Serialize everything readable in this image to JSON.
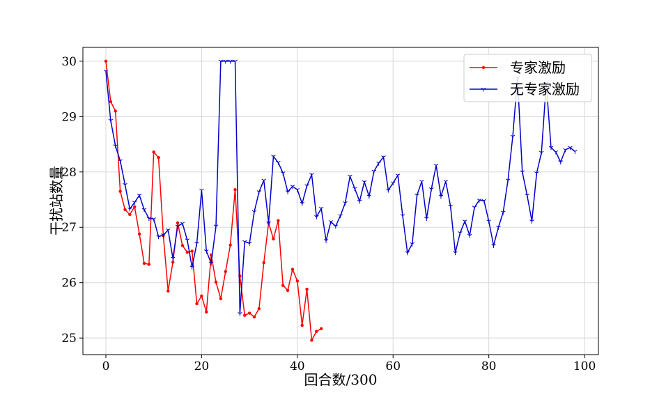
{
  "chart_data": {
    "type": "line",
    "xlabel": "回合数/300",
    "ylabel": "干扰站数量",
    "xlim": [
      -4.8,
      102.9
    ],
    "ylim": [
      24.7,
      30.25
    ],
    "xticks": [
      0,
      20,
      40,
      60,
      80,
      100
    ],
    "yticks": [
      25,
      26,
      27,
      28,
      29,
      30
    ],
    "grid": true,
    "legend": "upper right",
    "series": [
      {
        "name": "专家激励",
        "color": "#ff0000",
        "marker": "dot",
        "x": [
          0,
          1,
          2,
          3,
          4,
          5,
          6,
          7,
          8,
          9,
          10,
          11,
          12,
          13,
          14,
          15,
          16,
          17,
          18,
          19,
          20,
          21,
          22,
          23,
          24,
          25,
          26,
          27,
          28,
          29,
          30,
          31,
          32,
          33,
          34,
          35,
          36,
          37,
          38,
          39,
          40,
          41,
          42,
          43,
          44,
          45
        ],
        "values": [
          30.0,
          29.27,
          29.1,
          27.65,
          27.32,
          27.23,
          27.37,
          26.88,
          26.35,
          26.33,
          28.36,
          28.26,
          26.85,
          25.85,
          26.37,
          27.08,
          26.67,
          26.55,
          26.57,
          25.62,
          25.76,
          25.47,
          26.5,
          26.01,
          25.71,
          26.2,
          26.68,
          27.68,
          26.12,
          25.41,
          25.45,
          25.38,
          25.53,
          26.36,
          27.08,
          26.79,
          27.12,
          25.95,
          25.86,
          26.24,
          26.03,
          25.23,
          25.88,
          24.96,
          25.12,
          25.17
        ]
      },
      {
        "name": "无专家激励",
        "color": "#0000cc",
        "marker": "tri_down",
        "x": [
          0,
          1,
          2,
          3,
          4,
          5,
          6,
          7,
          8,
          9,
          10,
          11,
          12,
          13,
          14,
          15,
          16,
          17,
          18,
          19,
          20,
          21,
          22,
          23,
          24,
          25,
          26,
          27,
          28,
          29,
          30,
          31,
          32,
          33,
          34,
          35,
          36,
          37,
          38,
          39,
          40,
          41,
          42,
          43,
          44,
          45,
          46,
          47,
          48,
          49,
          50,
          51,
          52,
          53,
          54,
          55,
          56,
          57,
          58,
          59,
          60,
          61,
          62,
          63,
          64,
          65,
          66,
          67,
          68,
          69,
          70,
          71,
          72,
          73,
          74,
          75,
          76,
          77,
          78,
          79,
          80,
          81,
          82,
          83,
          84,
          85,
          86,
          87,
          88,
          89,
          90,
          91,
          92,
          93,
          94,
          95,
          96,
          97,
          98
        ],
        "values": [
          29.82,
          28.93,
          28.47,
          28.2,
          27.77,
          27.33,
          27.45,
          27.58,
          27.32,
          27.16,
          27.15,
          26.83,
          26.86,
          26.95,
          26.44,
          27.02,
          27.07,
          26.77,
          26.28,
          26.71,
          27.67,
          26.57,
          26.35,
          27.02,
          30.0,
          30.0,
          30.0,
          30.0,
          25.44,
          26.74,
          26.71,
          27.28,
          27.64,
          27.85,
          27.08,
          28.28,
          28.17,
          27.98,
          27.64,
          27.74,
          27.68,
          27.43,
          27.75,
          27.95,
          27.19,
          27.34,
          26.76,
          27.1,
          27.02,
          27.21,
          27.44,
          27.92,
          27.7,
          27.47,
          27.82,
          27.56,
          28.01,
          28.16,
          28.27,
          27.67,
          27.8,
          27.94,
          27.21,
          26.54,
          26.7,
          27.58,
          27.83,
          27.16,
          27.69,
          28.12,
          27.56,
          27.83,
          27.38,
          26.54,
          26.9,
          27.11,
          26.85,
          27.36,
          27.49,
          27.48,
          27.11,
          26.67,
          27.0,
          27.27,
          27.85,
          28.64,
          29.7,
          28.0,
          27.58,
          27.11,
          27.98,
          28.35,
          29.6,
          28.44,
          28.36,
          28.18,
          28.4,
          28.44,
          28.37
        ]
      }
    ]
  }
}
